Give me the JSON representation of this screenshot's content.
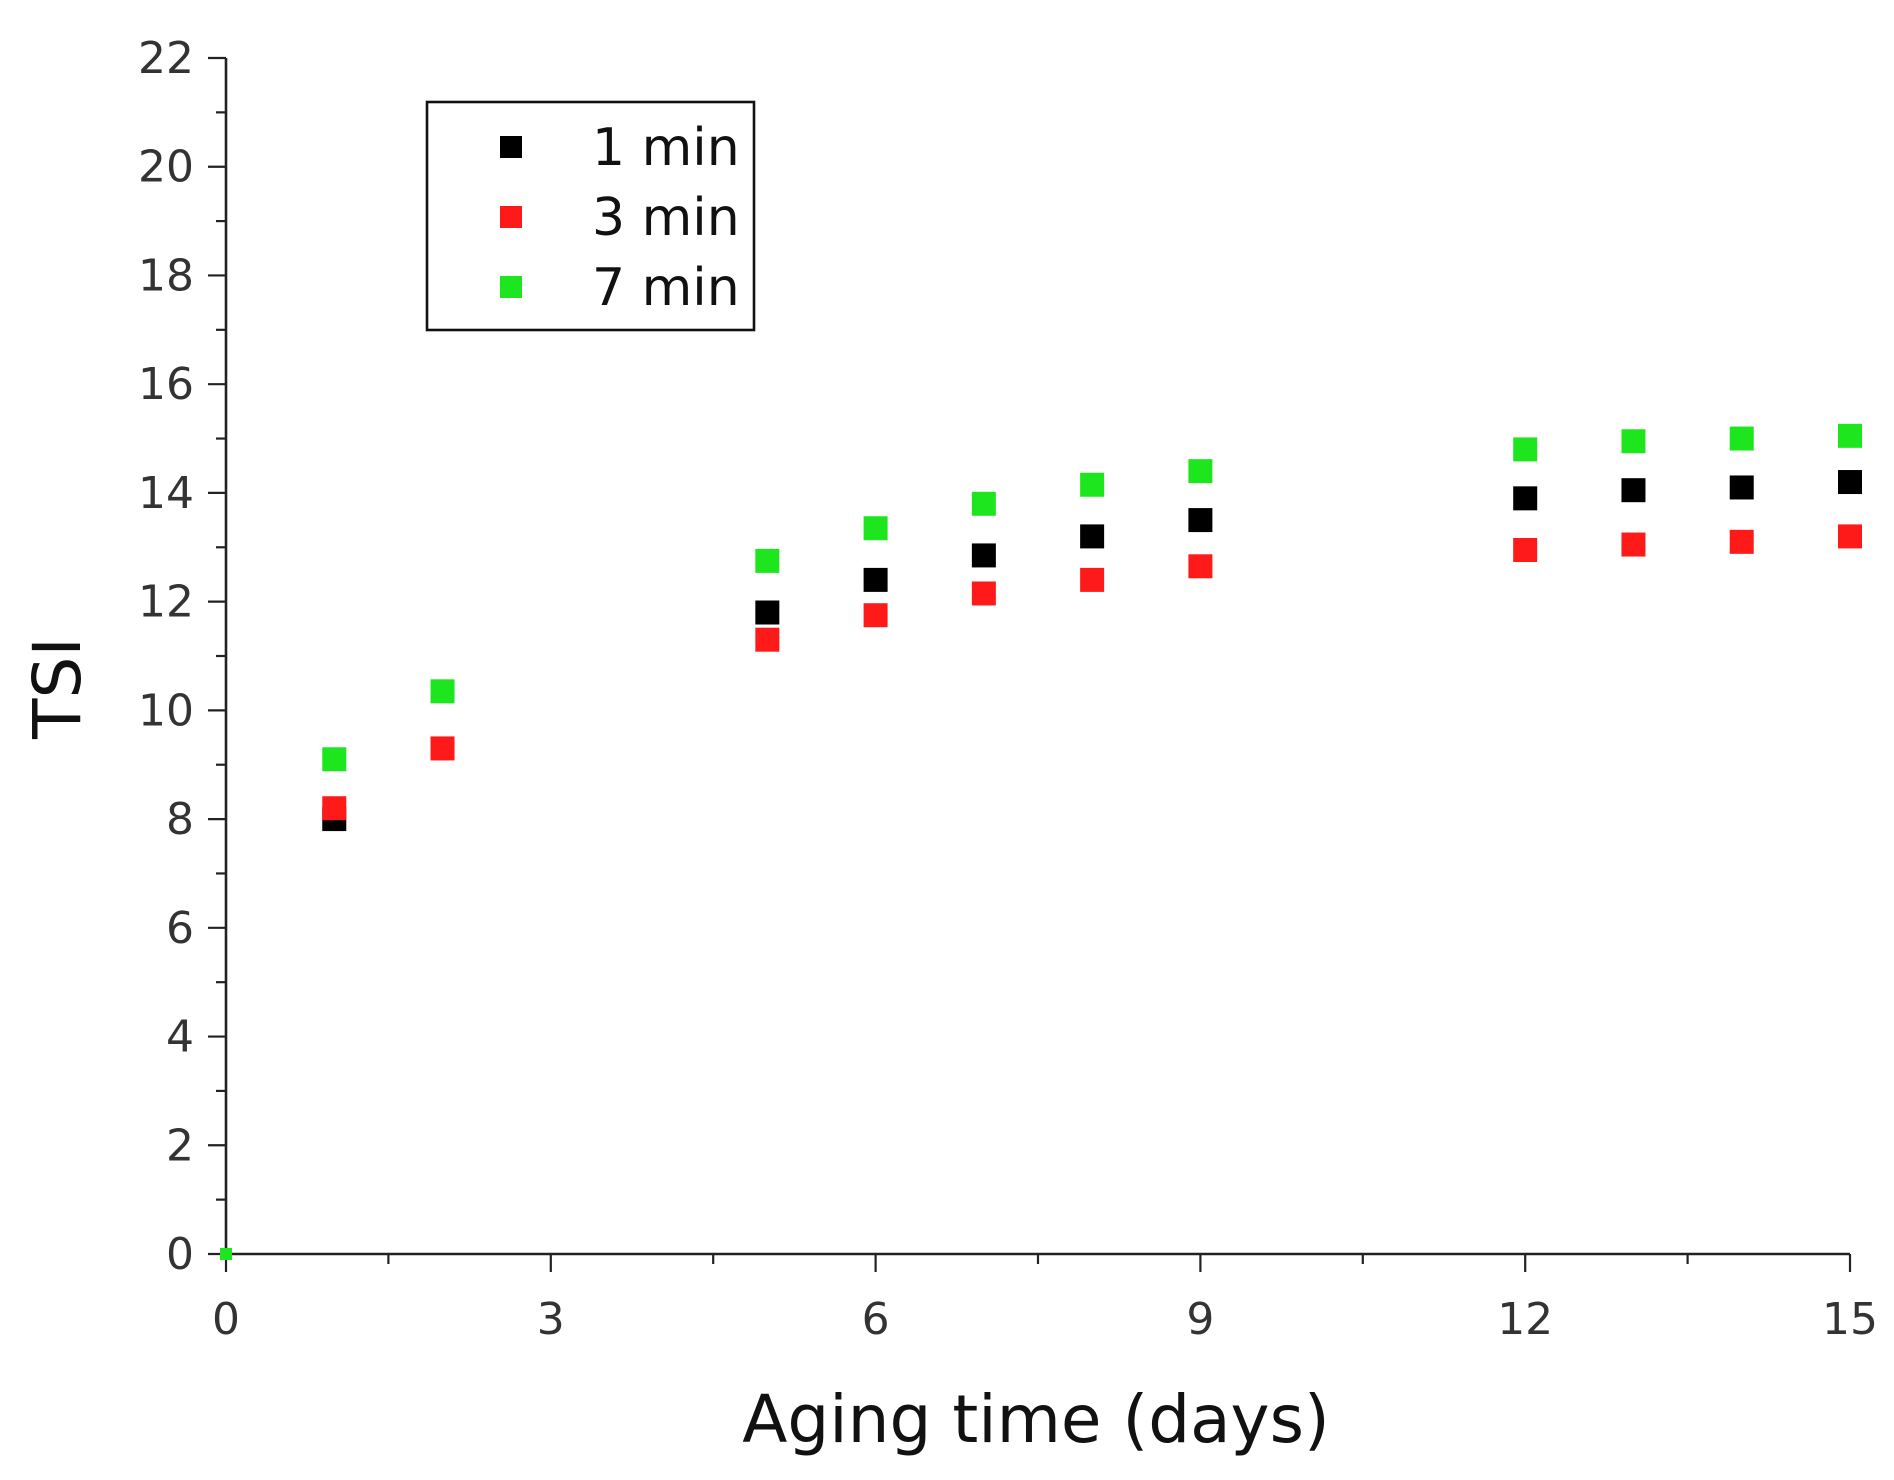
{
  "chart_data": {
    "type": "scatter",
    "title": "",
    "xlabel": "Aging time (days)",
    "ylabel": "TSI",
    "xlim": [
      0,
      15
    ],
    "ylim": [
      0,
      22
    ],
    "xticks": [
      "0",
      "3",
      "6",
      "9",
      "12",
      "15"
    ],
    "yticks": [
      "0",
      "2",
      "4",
      "6",
      "8",
      "10",
      "12",
      "14",
      "16",
      "18",
      "20",
      "22"
    ],
    "grid": false,
    "legend_position": "top-left",
    "series": [
      {
        "name": "1 min",
        "color": "#000000",
        "marker": "square",
        "x": [
          1,
          5,
          6,
          7,
          8,
          9,
          12,
          13,
          14,
          15
        ],
        "y": [
          8.0,
          11.8,
          12.4,
          12.85,
          13.2,
          13.5,
          13.9,
          14.05,
          14.1,
          14.2
        ]
      },
      {
        "name": "3 min",
        "color": "#ff1a1a",
        "marker": "square",
        "x": [
          1,
          2,
          5,
          6,
          7,
          8,
          9,
          12,
          13,
          14,
          15
        ],
        "y": [
          8.2,
          9.3,
          11.3,
          11.75,
          12.15,
          12.4,
          12.65,
          12.95,
          13.05,
          13.1,
          13.2
        ]
      },
      {
        "name": "7 min",
        "color": "#1ee61e",
        "marker": "square",
        "x": [
          0,
          1,
          2,
          5,
          6,
          7,
          8,
          9,
          12,
          13,
          14,
          15
        ],
        "y": [
          0,
          9.1,
          10.35,
          12.75,
          13.35,
          13.8,
          14.15,
          14.4,
          14.8,
          14.95,
          15.0,
          15.05
        ]
      }
    ]
  }
}
